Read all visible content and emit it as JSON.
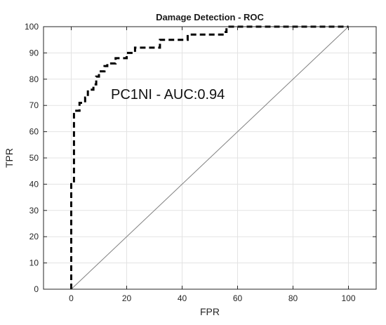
{
  "chart_data": {
    "type": "line",
    "title": "Damage Detection - ROC",
    "xlabel": "FPR",
    "ylabel": "TPR",
    "xlim": [
      -10,
      110
    ],
    "ylim": [
      0,
      100
    ],
    "xticks": [
      0,
      20,
      40,
      60,
      80,
      100
    ],
    "yticks": [
      0,
      10,
      20,
      30,
      40,
      50,
      60,
      70,
      80,
      90,
      100
    ],
    "grid": true,
    "annotation": "PC1NI - AUC:0.94",
    "series": [
      {
        "style": "dashed",
        "color": "#000000",
        "points": [
          [
            0,
            0
          ],
          [
            0,
            40
          ],
          [
            1,
            40
          ],
          [
            1,
            68
          ],
          [
            3,
            68
          ],
          [
            3,
            71
          ],
          [
            5,
            71
          ],
          [
            5,
            73
          ],
          [
            6,
            73
          ],
          [
            6,
            76
          ],
          [
            8,
            76
          ],
          [
            8,
            78
          ],
          [
            9,
            78
          ],
          [
            9,
            81
          ],
          [
            10,
            81
          ],
          [
            10,
            83
          ],
          [
            12,
            83
          ],
          [
            12,
            85
          ],
          [
            13,
            85
          ],
          [
            13,
            86
          ],
          [
            16,
            86
          ],
          [
            16,
            88
          ],
          [
            20,
            88
          ],
          [
            20,
            90
          ],
          [
            23,
            90
          ],
          [
            23,
            92
          ],
          [
            32,
            92
          ],
          [
            32,
            95
          ],
          [
            42,
            95
          ],
          [
            42,
            97
          ],
          [
            55,
            97
          ],
          [
            55,
            98
          ],
          [
            56,
            98
          ],
          [
            56,
            100
          ],
          [
            100,
            100
          ]
        ]
      },
      {
        "style": "solid",
        "color": "#808080",
        "points": [
          [
            0,
            0
          ],
          [
            100,
            100
          ]
        ]
      }
    ]
  }
}
